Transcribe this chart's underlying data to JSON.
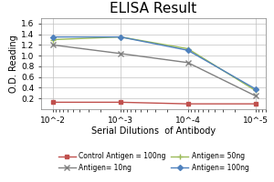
{
  "title": "ELISA Result",
  "xlabel": "Serial Dilutions  of Antibody",
  "ylabel": "O.D. Reading",
  "x_values": [
    0.01,
    0.001,
    0.0001,
    1e-05
  ],
  "x_tick_labels": [
    "10^-2",
    "10^-3",
    "10^-4",
    "10^-5"
  ],
  "series": [
    {
      "label": "Control Antigen = 100ng",
      "color": "#c0504d",
      "y": [
        0.13,
        0.13,
        0.1,
        0.1
      ],
      "marker": "s",
      "markersize": 3.5,
      "linewidth": 1.0,
      "linestyle": "-"
    },
    {
      "label": "Antigen= 10ng",
      "color": "#808080",
      "y": [
        1.2,
        1.04,
        0.87,
        0.25
      ],
      "marker": "x",
      "markersize": 4.0,
      "linewidth": 1.0,
      "linestyle": "-"
    },
    {
      "label": "Antigen= 50ng",
      "color": "#9bbb59",
      "y": [
        1.3,
        1.35,
        1.13,
        0.35
      ],
      "marker": "+",
      "markersize": 4.5,
      "linewidth": 1.0,
      "linestyle": "-"
    },
    {
      "label": "Antigen= 100ng",
      "color": "#4f81bd",
      "y": [
        1.35,
        1.35,
        1.1,
        0.38
      ],
      "marker": "D",
      "markersize": 3.0,
      "linewidth": 1.0,
      "linestyle": "-"
    }
  ],
  "ylim": [
    0,
    1.7
  ],
  "yticks": [
    0.2,
    0.4,
    0.6,
    0.8,
    1.0,
    1.2,
    1.4,
    1.6
  ],
  "xlim_left": 0.015,
  "xlim_right": 7e-06,
  "background_color": "#ffffff",
  "grid_color": "#c0c0c0",
  "title_fontsize": 11,
  "label_fontsize": 7,
  "tick_fontsize": 6.5,
  "legend_fontsize": 5.5
}
